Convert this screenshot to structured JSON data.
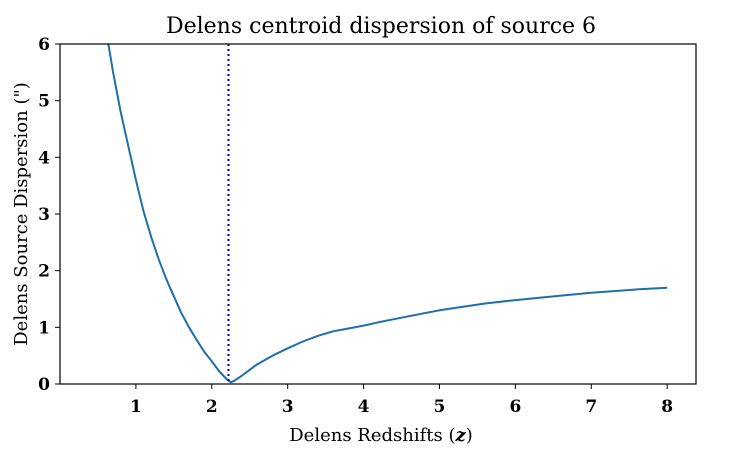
{
  "chart_data": {
    "type": "line",
    "title": "Delens centroid dispersion of source 6",
    "xlabel_main": "Delens Redshifts (",
    "xlabel_var": "z",
    "xlabel_end": ")",
    "ylabel": "Delens Source Dispersion (\")",
    "xlim": [
      0.0,
      8.38
    ],
    "ylim": [
      0,
      6
    ],
    "xticks": [
      "1",
      "2",
      "3",
      "4",
      "5",
      "6",
      "7",
      "8"
    ],
    "yticks": [
      "0",
      "1",
      "2",
      "3",
      "4",
      "5",
      "6"
    ],
    "grid": false,
    "legend": "none",
    "vline": {
      "x": 2.22,
      "color": "#0000cc",
      "style": "dotted"
    },
    "series": [
      {
        "color": "#1f6fa8",
        "x": [
          0.6,
          0.7,
          0.8,
          0.9,
          1.0,
          1.1,
          1.2,
          1.3,
          1.4,
          1.5,
          1.6,
          1.7,
          1.8,
          1.9,
          2.0,
          2.1,
          2.2,
          2.25,
          2.3,
          2.4,
          2.5,
          2.6,
          2.8,
          3.0,
          3.2,
          3.4,
          3.6,
          3.8,
          4.0,
          4.2,
          4.5,
          4.8,
          5.0,
          5.3,
          5.6,
          6.0,
          6.3,
          6.6,
          7.0,
          7.3,
          7.6,
          8.0
        ],
        "y": [
          6.3,
          5.5,
          4.8,
          4.2,
          3.6,
          3.05,
          2.6,
          2.2,
          1.85,
          1.55,
          1.25,
          1.0,
          0.78,
          0.57,
          0.4,
          0.22,
          0.08,
          0.03,
          0.06,
          0.15,
          0.25,
          0.35,
          0.5,
          0.63,
          0.75,
          0.85,
          0.93,
          0.98,
          1.03,
          1.09,
          1.17,
          1.25,
          1.3,
          1.36,
          1.42,
          1.48,
          1.52,
          1.56,
          1.61,
          1.64,
          1.67,
          1.7
        ]
      }
    ]
  }
}
